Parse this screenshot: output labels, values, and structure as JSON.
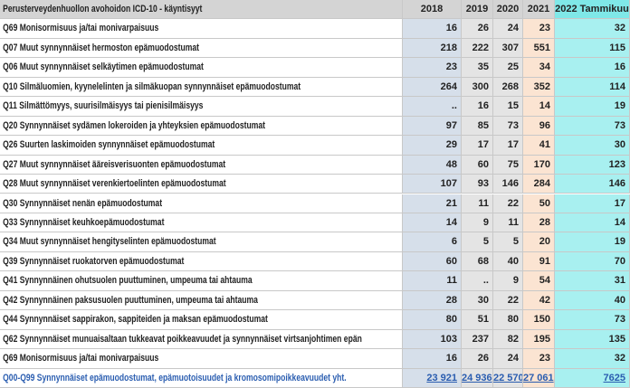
{
  "table": {
    "header": [
      "Perusterveydenhuollon avohoidon ICD-10 - käyntisyyt",
      "2018",
      "2019",
      "2020",
      "2021",
      "2022 Tammikuu"
    ],
    "rows": [
      [
        "Q69 Monisormisuus ja/tai monivarpaisuus",
        "16",
        "26",
        "24",
        "23",
        "32"
      ],
      [
        "Q07 Muut synnynnäiset hermoston epämuodostumat",
        "218",
        "222",
        "307",
        "551",
        "115"
      ],
      [
        "Q06 Muut synnynnäiset selkäytimen epämuodostumat",
        "23",
        "35",
        "25",
        "34",
        "16"
      ],
      [
        "Q10 Silmäluomien, kyynelelinten ja silmäkuopan synnynnäiset epämuodostumat",
        "264",
        "300",
        "268",
        "352",
        "114"
      ],
      [
        "Q11 Silmättömyys, suurisilmäisyys tai pienisilmäisyys",
        "..",
        "16",
        "15",
        "14",
        "19"
      ],
      [
        "Q20 Synnynnäiset sydämen lokeroiden ja yhteyksien epämuodostumat",
        "97",
        "85",
        "73",
        "96",
        "73"
      ],
      [
        "Q26 Suurten laskimoiden synnynnäiset epämuodostumat",
        "29",
        "17",
        "17",
        "41",
        "30"
      ],
      [
        "Q27 Muut synnynnäiset ääreisverisuonten epämuodostumat",
        "48",
        "60",
        "75",
        "170",
        "123"
      ],
      [
        "Q28 Muut synnynnäiset verenkiertoelinten epämuodostumat",
        "107",
        "93",
        "146",
        "284",
        "146"
      ],
      [
        "Q30 Synnynnäiset nenän epämuodostumat",
        "21",
        "11",
        "22",
        "50",
        "17"
      ],
      [
        "Q33 Synnynnäiset keuhkoepämuodostumat",
        "14",
        "9",
        "11",
        "28",
        "14"
      ],
      [
        "Q34 Muut synnynnäiset hengityselinten epämuodostumat",
        "6",
        "5",
        "5",
        "20",
        "19"
      ],
      [
        "Q39 Synnynnäiset ruokatorven epämuodostumat",
        "60",
        "68",
        "40",
        "91",
        "70"
      ],
      [
        "Q41 Synnynnäinen ohutsuolen puuttuminen, umpeuma tai ahtauma",
        "11",
        "..",
        "9",
        "54",
        "31"
      ],
      [
        "Q42 Synnynnäinen paksusuolen puuttuminen, umpeuma tai ahtauma",
        "28",
        "30",
        "22",
        "42",
        "40"
      ],
      [
        "Q44 Synnynnäiset sappirakon, sappiteiden ja maksan epämuodostumat",
        "80",
        "51",
        "80",
        "150",
        "73"
      ],
      [
        "Q62 Synnynnäiset munuaisaltaan tukkeavat poikkeavuudet ja synnynnäiset virtsanjohtimen epän",
        "103",
        "237",
        "82",
        "195",
        "135"
      ],
      [
        "Q69 Monisormisuus ja/tai monivarpaisuus",
        "16",
        "26",
        "24",
        "23",
        "32"
      ]
    ],
    "total": [
      "Q00-Q99 Synnynnäiset epämuodostumat, epämuotoisuudet ja kromosomipoikkeavuudet yht.",
      "23 921",
      "24 936",
      "22 570",
      "27 061",
      "7625"
    ]
  }
}
